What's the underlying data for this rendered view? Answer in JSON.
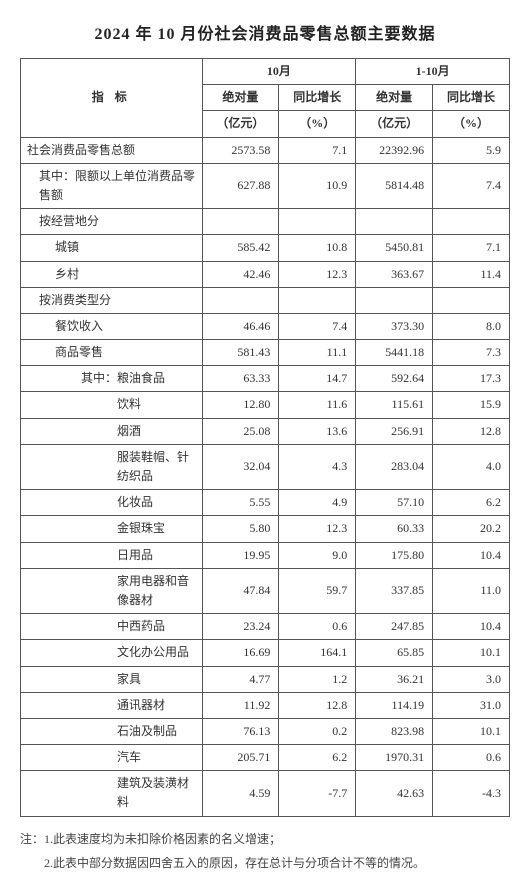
{
  "title": "2024 年 10 月份社会消费品零售总额主要数据",
  "header": {
    "indicator": "指  标",
    "period1": "10月",
    "period2": "1-10月",
    "abs": "绝对量",
    "abs_unit": "（亿元）",
    "yoy": "同比增长",
    "yoy_unit": "（%）"
  },
  "rows": [
    {
      "label": "社会消费品零售总额",
      "indent": 0,
      "v1": "2573.58",
      "g1": "7.1",
      "v2": "22392.96",
      "g2": "5.9"
    },
    {
      "label": "其中：限额以上单位消费品零售额",
      "indent": 1,
      "v1": "627.88",
      "g1": "10.9",
      "v2": "5814.48",
      "g2": "7.4"
    },
    {
      "label": "按经营地分",
      "indent": 1,
      "v1": "",
      "g1": "",
      "v2": "",
      "g2": ""
    },
    {
      "label": "城镇",
      "indent": 2,
      "v1": "585.42",
      "g1": "10.8",
      "v2": "5450.81",
      "g2": "7.1"
    },
    {
      "label": "乡村",
      "indent": 2,
      "v1": "42.46",
      "g1": "12.3",
      "v2": "363.67",
      "g2": "11.4"
    },
    {
      "label": "按消费类型分",
      "indent": 1,
      "v1": "",
      "g1": "",
      "v2": "",
      "g2": ""
    },
    {
      "label": "餐饮收入",
      "indent": 2,
      "v1": "46.46",
      "g1": "7.4",
      "v2": "373.30",
      "g2": "8.0"
    },
    {
      "label": "商品零售",
      "indent": 2,
      "v1": "581.43",
      "g1": "11.1",
      "v2": "5441.18",
      "g2": "7.3"
    },
    {
      "label": "其中：粮油食品",
      "indent": 3,
      "v1": "63.33",
      "g1": "14.7",
      "v2": "592.64",
      "g2": "17.3"
    },
    {
      "label": "饮料",
      "indent": 3,
      "sub": true,
      "v1": "12.80",
      "g1": "11.6",
      "v2": "115.61",
      "g2": "15.9"
    },
    {
      "label": "烟酒",
      "indent": 3,
      "sub": true,
      "v1": "25.08",
      "g1": "13.6",
      "v2": "256.91",
      "g2": "12.8"
    },
    {
      "label": "服装鞋帽、针纺织品",
      "indent": 3,
      "sub": true,
      "v1": "32.04",
      "g1": "4.3",
      "v2": "283.04",
      "g2": "4.0"
    },
    {
      "label": "化妆品",
      "indent": 3,
      "sub": true,
      "v1": "5.55",
      "g1": "4.9",
      "v2": "57.10",
      "g2": "6.2"
    },
    {
      "label": "金银珠宝",
      "indent": 3,
      "sub": true,
      "v1": "5.80",
      "g1": "12.3",
      "v2": "60.33",
      "g2": "20.2"
    },
    {
      "label": "日用品",
      "indent": 3,
      "sub": true,
      "v1": "19.95",
      "g1": "9.0",
      "v2": "175.80",
      "g2": "10.4"
    },
    {
      "label": "家用电器和音像器材",
      "indent": 3,
      "sub": true,
      "v1": "47.84",
      "g1": "59.7",
      "v2": "337.85",
      "g2": "11.0"
    },
    {
      "label": "中西药品",
      "indent": 3,
      "sub": true,
      "v1": "23.24",
      "g1": "0.6",
      "v2": "247.85",
      "g2": "10.4"
    },
    {
      "label": "文化办公用品",
      "indent": 3,
      "sub": true,
      "v1": "16.69",
      "g1": "164.1",
      "v2": "65.85",
      "g2": "10.1"
    },
    {
      "label": "家具",
      "indent": 3,
      "sub": true,
      "v1": "4.77",
      "g1": "1.2",
      "v2": "36.21",
      "g2": "3.0"
    },
    {
      "label": "通讯器材",
      "indent": 3,
      "sub": true,
      "v1": "11.92",
      "g1": "12.8",
      "v2": "114.19",
      "g2": "31.0"
    },
    {
      "label": "石油及制品",
      "indent": 3,
      "sub": true,
      "v1": "76.13",
      "g1": "0.2",
      "v2": "823.98",
      "g2": "10.1"
    },
    {
      "label": "汽车",
      "indent": 3,
      "sub": true,
      "v1": "205.71",
      "g1": "6.2",
      "v2": "1970.31",
      "g2": "0.6"
    },
    {
      "label": "建筑及装潢材料",
      "indent": 3,
      "sub": true,
      "v1": "4.59",
      "g1": "-7.7",
      "v2": "42.63",
      "g2": "-4.3"
    }
  ],
  "notes": {
    "n1": "注：1.此表速度均为未扣除价格因素的名义增速；",
    "n2": "2.此表中部分数据因四舍五入的原因，存在总计与分项合计不等的情况。"
  }
}
